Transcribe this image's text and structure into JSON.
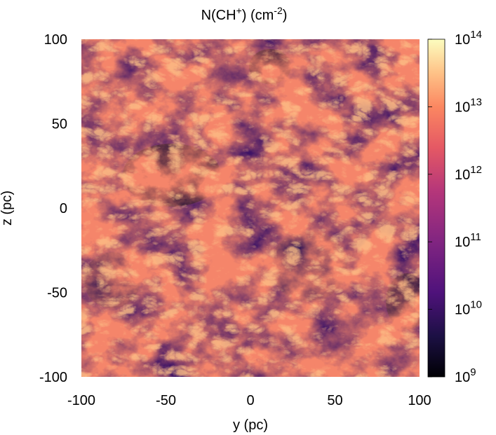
{
  "chart_data": {
    "type": "heatmap",
    "title_parts": {
      "prefix": "N(CH",
      "superscript": "+",
      "middle": ")  (cm",
      "unit_exponent": "-2",
      "suffix": ")"
    },
    "xlabel": "y (pc)",
    "ylabel": "z (pc)",
    "xlim": [
      -100,
      100
    ],
    "ylim": [
      -100,
      100
    ],
    "xticks": [
      "-100",
      "-50",
      "0",
      "50",
      "100"
    ],
    "yticks": [
      "100",
      "50",
      "0",
      "-50",
      "-100"
    ],
    "colorbar": {
      "scale": "log",
      "range": [
        1000000000.0,
        100000000000000.0
      ],
      "colormap": "magma",
      "ticks": [
        {
          "base": "10",
          "exp": "14",
          "log": 14
        },
        {
          "base": "10",
          "exp": "13",
          "log": 13
        },
        {
          "base": "10",
          "exp": "12",
          "log": 12
        },
        {
          "base": "10",
          "exp": "11",
          "log": 11
        },
        {
          "base": "10",
          "exp": "10",
          "log": 10
        },
        {
          "base": "10",
          "exp": "9",
          "log": 9
        }
      ]
    },
    "colors": {
      "min": "#000004",
      "low": "#3b0f70",
      "mid_low": "#8c2981",
      "mid": "#de4968",
      "mid_high": "#fe9f6d",
      "max": "#fcfdbf"
    }
  }
}
